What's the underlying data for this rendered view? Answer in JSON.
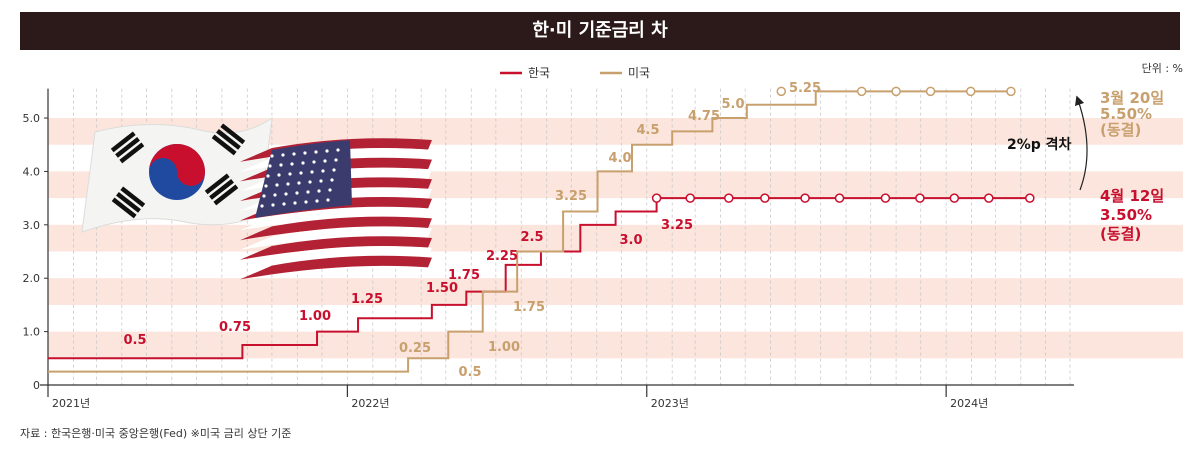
{
  "title": "한·미 기준금리 차",
  "unit_label": "단위 : %",
  "source": "자료 : 한국은행·미국 중앙은행(Fed) ※미국 금리 상단 기준",
  "colors": {
    "korea": "#c8102e",
    "us": "#c8a06e",
    "title_bg": "#2c1a1a",
    "band": "#fbe5dc"
  },
  "chart_data": {
    "type": "line",
    "step": true,
    "y_ticks": [
      "0",
      "1.0",
      "2.0",
      "3.0",
      "4.0",
      "5.0"
    ],
    "ylim": [
      0,
      5.6
    ],
    "x_labels": [
      "2021년",
      "2022년",
      "2023년",
      "2024년"
    ],
    "xlim": [
      "2021-01-01",
      "2024-05-31"
    ],
    "series": [
      {
        "name": "한국",
        "color": "#c8102e",
        "steps": [
          {
            "date": "2021-01-01",
            "value": 0.5
          },
          {
            "date": "2021-08-26",
            "value": 0.75
          },
          {
            "date": "2021-11-25",
            "value": 1.0
          },
          {
            "date": "2022-01-14",
            "value": 1.25
          },
          {
            "date": "2022-04-14",
            "value": 1.5
          },
          {
            "date": "2022-05-26",
            "value": 1.75
          },
          {
            "date": "2022-07-13",
            "value": 2.25
          },
          {
            "date": "2022-08-25",
            "value": 2.5
          },
          {
            "date": "2022-10-12",
            "value": 3.0
          },
          {
            "date": "2022-11-24",
            "value": 3.25
          },
          {
            "date": "2023-01-13",
            "value": 3.5
          },
          {
            "date": "2024-04-12",
            "value": 3.5
          }
        ],
        "step_labels": [
          "0.5",
          "0.75",
          "1.00",
          "1.25",
          "1.50",
          "1.75",
          "2.25",
          "2.5",
          "3.0",
          "3.25"
        ],
        "hold_markers": [
          "2023-01-13",
          "2023-02-23",
          "2023-04-11",
          "2023-05-25",
          "2023-07-13",
          "2023-08-24",
          "2023-10-19",
          "2023-11-30",
          "2024-01-11",
          "2024-02-22",
          "2024-04-12"
        ],
        "end_annotation": [
          "4월 12일",
          "3.50%",
          "(동결)"
        ]
      },
      {
        "name": "미국",
        "color": "#c8a06e",
        "steps": [
          {
            "date": "2021-01-01",
            "value": 0.25
          },
          {
            "date": "2022-03-16",
            "value": 0.5
          },
          {
            "date": "2022-05-04",
            "value": 1.0
          },
          {
            "date": "2022-06-15",
            "value": 1.75
          },
          {
            "date": "2022-07-27",
            "value": 2.5
          },
          {
            "date": "2022-09-21",
            "value": 3.25
          },
          {
            "date": "2022-11-02",
            "value": 4.0
          },
          {
            "date": "2022-12-14",
            "value": 4.5
          },
          {
            "date": "2023-02-01",
            "value": 4.75
          },
          {
            "date": "2023-03-22",
            "value": 5.0
          },
          {
            "date": "2023-05-03",
            "value": 5.25
          },
          {
            "date": "2023-07-26",
            "value": 5.5
          },
          {
            "date": "2024-03-20",
            "value": 5.5
          }
        ],
        "step_labels": [
          "0.25",
          "0.5",
          "1.00",
          "1.75",
          "2.5",
          "3.25",
          "4.0",
          "4.5",
          "4.75",
          "5.0",
          "5.25"
        ],
        "hold_markers": [
          "2023-06-14",
          "2023-09-20",
          "2023-11-01",
          "2023-12-13",
          "2024-01-31",
          "2024-03-20"
        ],
        "end_annotation": [
          "3월 20일",
          "5.50%",
          "(동결)"
        ]
      }
    ],
    "gap_annotation": "2%p 격차"
  }
}
